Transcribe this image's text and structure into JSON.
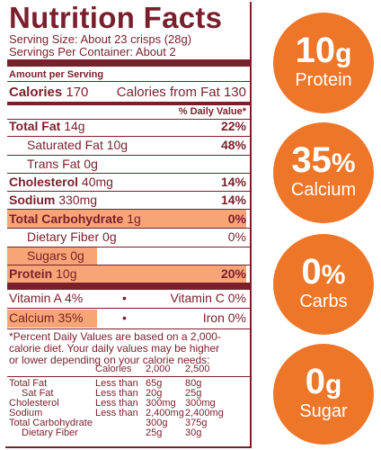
{
  "label": {
    "title": "Nutrition Facts",
    "serving_size": "Serving Size: About 23 crisps (28g)",
    "servings_per_container": "Servings Per Container: About 2",
    "amount_per_serving": "Amount per Serving",
    "calories_label": "Calories",
    "calories_value": "170",
    "calories_from_fat": "Calories from Fat 130",
    "daily_value_header": "% Daily Value*",
    "rows": [
      {
        "name": "Total Fat",
        "amount": "14g",
        "dv": "22%"
      },
      {
        "name": "Saturated Fat",
        "amount": "10g",
        "dv": "48%"
      },
      {
        "name": "Trans Fat",
        "amount": "0g",
        "dv": ""
      },
      {
        "name": "Cholesterol",
        "amount": "40mg",
        "dv": "14%"
      },
      {
        "name": "Sodium",
        "amount": "330mg",
        "dv": "14%"
      },
      {
        "name": "Total Carbohydrate",
        "amount": "1g",
        "dv": "0%"
      },
      {
        "name": "Dietary Fiber",
        "amount": "0g",
        "dv": "0%"
      },
      {
        "name": "Sugars",
        "amount": "0g",
        "dv": ""
      },
      {
        "name": "Protein",
        "amount": "10g",
        "dv": "20%"
      }
    ],
    "vitamins": {
      "vitamin_a": "Vitamin A",
      "vitamin_a_pct": "4%",
      "vitamin_c": "Vitamin C",
      "vitamin_c_pct": "0%",
      "calcium": "Calcium",
      "calcium_pct": "35%",
      "iron": "Iron",
      "iron_pct": "0%",
      "bullet": "•"
    },
    "footnote": [
      "*Percent Daily Values are based on a 2,000-",
      "calorie diet. Your daily values may be higher",
      "or lower depending on your calorie needs:"
    ],
    "dv_table": {
      "header": {
        "calories": "Calories",
        "c2000": "2,000",
        "c2500": "2,500"
      },
      "rows": [
        {
          "name": "Total Fat",
          "cond": "Less than",
          "a": "65g",
          "b": "80g"
        },
        {
          "name": "Sat Fat",
          "cond": "Less than",
          "a": "20g",
          "b": "25g"
        },
        {
          "name": "Cholesterol",
          "cond": "Less than",
          "a": "300mg",
          "b": "300mg"
        },
        {
          "name": "Sodium",
          "cond": "Less than",
          "a": "2,400mg",
          "b": "2,400mg"
        },
        {
          "name": "Total Carbohydrate",
          "cond": "",
          "a": "300g",
          "b": "375g"
        },
        {
          "name": "Dietary Fiber",
          "cond": "",
          "a": "25g",
          "b": "30g"
        }
      ]
    }
  },
  "badges": [
    {
      "value": "10",
      "unit": "g",
      "label": "Protein"
    },
    {
      "value": "35",
      "unit": "%",
      "label": "Calcium"
    },
    {
      "value": "0",
      "unit": "%",
      "label": "Carbs"
    },
    {
      "value": "0",
      "unit": "g",
      "label": "Sugar"
    }
  ],
  "colors": {
    "text": "#7a1f2b",
    "highlight": "#f7a577",
    "badge": "#ee7629"
  }
}
